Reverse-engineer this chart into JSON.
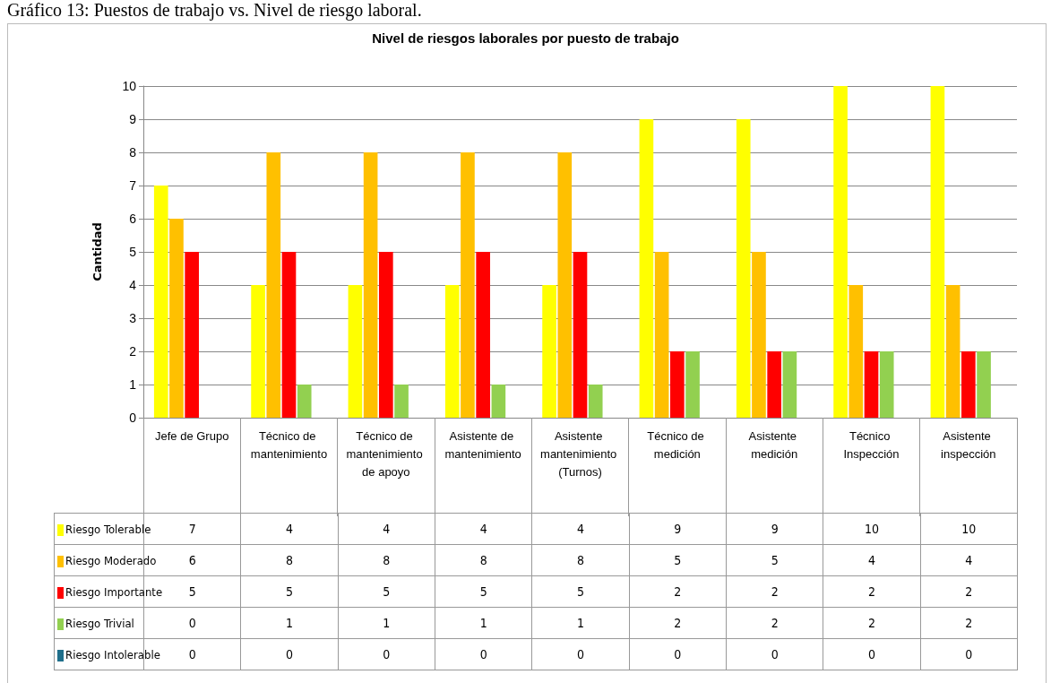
{
  "chart_data": {
    "type": "bar",
    "title": "Nivel de riesgos laborales por puesto de trabajo",
    "ylabel": "Cantidad",
    "annotations": [
      "Gráfico 13: Puestos de trabajo vs. Nivel de riesgo laboral."
    ],
    "categories": [
      "Jefe de Grupo",
      "Técnico de mantenimiento",
      "Técnico de mantenimiento de apoyo",
      "Asistente de mantenimiento",
      "Asistente mantenimiento (Turnos)",
      "Técnico de medición",
      "Asistente medición",
      "Técnico Inspección",
      "Asistente inspección"
    ],
    "series": [
      {
        "name": "Riesgo Tolerable",
        "color": "#ffff00",
        "values": [
          7,
          4,
          4,
          4,
          4,
          9,
          9,
          10,
          10
        ]
      },
      {
        "name": "Riesgo Moderado",
        "color": "#ffc000",
        "values": [
          6,
          8,
          8,
          8,
          8,
          5,
          5,
          4,
          4
        ]
      },
      {
        "name": "Riesgo Importante",
        "color": "#ff0000",
        "values": [
          5,
          5,
          5,
          5,
          5,
          2,
          2,
          2,
          2
        ]
      },
      {
        "name": "Riesgo Trivial",
        "color": "#92d050",
        "values": [
          0,
          1,
          1,
          1,
          1,
          2,
          2,
          2,
          2
        ]
      },
      {
        "name": "Riesgo Intolerable",
        "color": "#1f6f8b",
        "values": [
          0,
          0,
          0,
          0,
          0,
          0,
          0,
          0,
          0
        ]
      }
    ],
    "ylim": [
      0,
      10
    ],
    "yticks": [
      0,
      1,
      2,
      3,
      4,
      5,
      6,
      7,
      8,
      9,
      10
    ],
    "grid": "y",
    "legend": "bottom",
    "data_labels": true
  }
}
